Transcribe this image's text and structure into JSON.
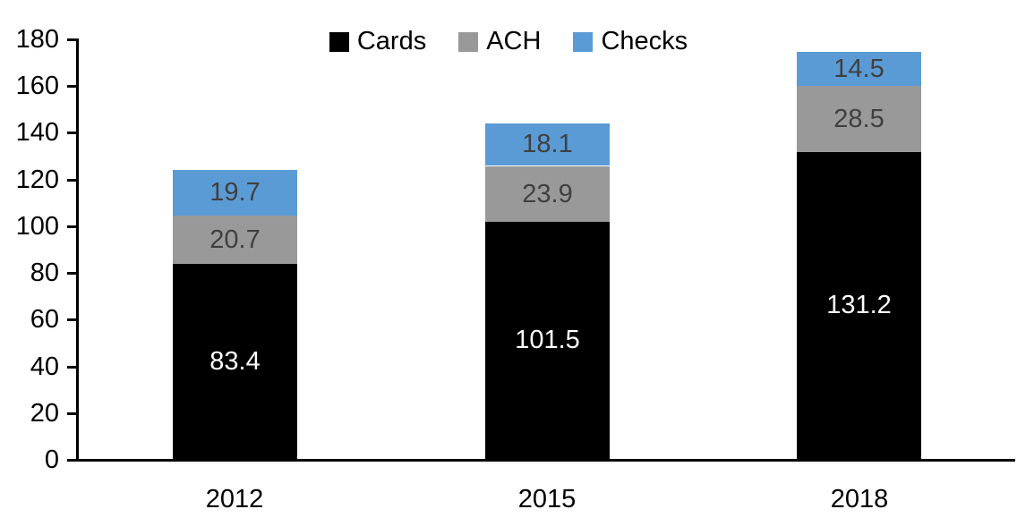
{
  "chart_data": {
    "type": "bar",
    "stacked": true,
    "title": "",
    "xlabel": "",
    "ylabel": "",
    "categories": [
      "2012",
      "2015",
      "2018"
    ],
    "series": [
      {
        "name": "Cards",
        "color": "#000000",
        "label_color": "#ffffff",
        "values": [
          83.4,
          101.5,
          131.2
        ]
      },
      {
        "name": "ACH",
        "color": "#999999",
        "label_color": "#404040",
        "values": [
          20.7,
          23.9,
          28.5
        ]
      },
      {
        "name": "Checks",
        "color": "#5b9bd5",
        "label_color": "#404040",
        "values": [
          19.7,
          18.1,
          14.5
        ]
      }
    ],
    "totals": [
      123.8,
      143.5,
      174.2
    ],
    "ylim": [
      0,
      180
    ],
    "yticks": [
      0,
      20,
      40,
      60,
      80,
      100,
      120,
      140,
      160,
      180
    ],
    "grid": false,
    "legend_position": "top-center",
    "axis_color": "#000000"
  }
}
